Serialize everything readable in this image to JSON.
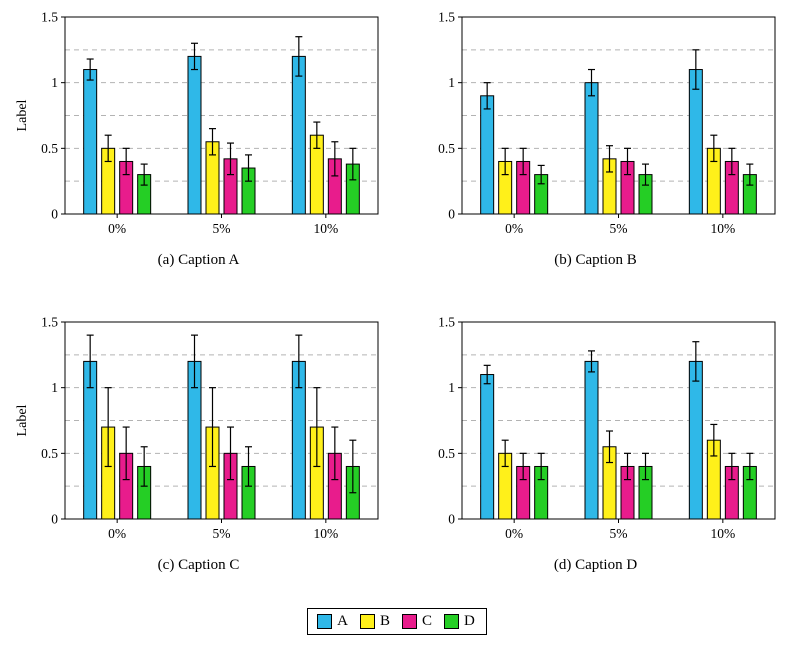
{
  "page": {
    "background": "#ffffff"
  },
  "axis_style": {
    "grid_color": "#b3b3b3",
    "grid_dash": "5 4",
    "bar_border_color": "#000000",
    "error_bar_color": "#000000"
  },
  "legend": {
    "entries": [
      {
        "label": "A",
        "color": "#2FB8E8"
      },
      {
        "label": "B",
        "color": "#FFF01A"
      },
      {
        "label": "C",
        "color": "#E81C8C"
      },
      {
        "label": "D",
        "color": "#25CE25"
      }
    ]
  },
  "chart_data": [
    {
      "type": "bar",
      "title": "(a) Caption A",
      "ylabel": "Label",
      "categories": [
        "0%",
        "5%",
        "10%"
      ],
      "ylim": [
        0,
        1.5
      ],
      "yticks": [
        0,
        0.5,
        1,
        1.5
      ],
      "yticklabels": [
        "0",
        "0.5",
        "1",
        "1.5"
      ],
      "grid": "dashed-horizontal-every-0.25",
      "legend_position": "shared-bottom",
      "series": [
        {
          "name": "A",
          "color": "#2FB8E8",
          "values": [
            1.1,
            1.2,
            1.2
          ],
          "errors": [
            0.08,
            0.1,
            0.15
          ]
        },
        {
          "name": "B",
          "color": "#FFF01A",
          "values": [
            0.5,
            0.55,
            0.6
          ],
          "errors": [
            0.1,
            0.1,
            0.1
          ]
        },
        {
          "name": "C",
          "color": "#E81C8C",
          "values": [
            0.4,
            0.42,
            0.42
          ],
          "errors": [
            0.1,
            0.12,
            0.13
          ]
        },
        {
          "name": "D",
          "color": "#25CE25",
          "values": [
            0.3,
            0.35,
            0.38
          ],
          "errors": [
            0.08,
            0.1,
            0.12
          ]
        }
      ]
    },
    {
      "type": "bar",
      "title": "(b) Caption B",
      "ylabel": "",
      "categories": [
        "0%",
        "5%",
        "10%"
      ],
      "ylim": [
        0,
        1.5
      ],
      "yticks": [
        0,
        0.5,
        1,
        1.5
      ],
      "yticklabels": [
        "0",
        "0.5",
        "1",
        "1.5"
      ],
      "grid": "dashed-horizontal-every-0.25",
      "legend_position": "shared-bottom",
      "series": [
        {
          "name": "A",
          "color": "#2FB8E8",
          "values": [
            0.9,
            1.0,
            1.1
          ],
          "errors": [
            0.1,
            0.1,
            0.15
          ]
        },
        {
          "name": "B",
          "color": "#FFF01A",
          "values": [
            0.4,
            0.42,
            0.5
          ],
          "errors": [
            0.1,
            0.1,
            0.1
          ]
        },
        {
          "name": "C",
          "color": "#E81C8C",
          "values": [
            0.4,
            0.4,
            0.4
          ],
          "errors": [
            0.1,
            0.1,
            0.1
          ]
        },
        {
          "name": "D",
          "color": "#25CE25",
          "values": [
            0.3,
            0.3,
            0.3
          ],
          "errors": [
            0.07,
            0.08,
            0.08
          ]
        }
      ]
    },
    {
      "type": "bar",
      "title": "(c) Caption C",
      "ylabel": "Label",
      "categories": [
        "0%",
        "5%",
        "10%"
      ],
      "ylim": [
        0,
        1.5
      ],
      "yticks": [
        0,
        0.5,
        1,
        1.5
      ],
      "yticklabels": [
        "0",
        "0.5",
        "1",
        "1.5"
      ],
      "grid": "dashed-horizontal-every-0.25",
      "legend_position": "shared-bottom",
      "series": [
        {
          "name": "A",
          "color": "#2FB8E8",
          "values": [
            1.2,
            1.2,
            1.2
          ],
          "errors": [
            0.2,
            0.2,
            0.2
          ]
        },
        {
          "name": "B",
          "color": "#FFF01A",
          "values": [
            0.7,
            0.7,
            0.7
          ],
          "errors": [
            0.3,
            0.3,
            0.3
          ]
        },
        {
          "name": "C",
          "color": "#E81C8C",
          "values": [
            0.5,
            0.5,
            0.5
          ],
          "errors": [
            0.2,
            0.2,
            0.2
          ]
        },
        {
          "name": "D",
          "color": "#25CE25",
          "values": [
            0.4,
            0.4,
            0.4
          ],
          "errors": [
            0.15,
            0.15,
            0.2
          ]
        }
      ]
    },
    {
      "type": "bar",
      "title": "(d) Caption D",
      "ylabel": "",
      "categories": [
        "0%",
        "5%",
        "10%"
      ],
      "ylim": [
        0,
        1.5
      ],
      "yticks": [
        0,
        0.5,
        1,
        1.5
      ],
      "yticklabels": [
        "0",
        "0.5",
        "1",
        "1.5"
      ],
      "grid": "dashed-horizontal-every-0.25",
      "legend_position": "shared-bottom",
      "series": [
        {
          "name": "A",
          "color": "#2FB8E8",
          "values": [
            1.1,
            1.2,
            1.2
          ],
          "errors": [
            0.07,
            0.08,
            0.15
          ]
        },
        {
          "name": "B",
          "color": "#FFF01A",
          "values": [
            0.5,
            0.55,
            0.6
          ],
          "errors": [
            0.1,
            0.12,
            0.12
          ]
        },
        {
          "name": "C",
          "color": "#E81C8C",
          "values": [
            0.4,
            0.4,
            0.4
          ],
          "errors": [
            0.1,
            0.1,
            0.1
          ]
        },
        {
          "name": "D",
          "color": "#25CE25",
          "values": [
            0.4,
            0.4,
            0.4
          ],
          "errors": [
            0.1,
            0.1,
            0.1
          ]
        }
      ]
    }
  ]
}
